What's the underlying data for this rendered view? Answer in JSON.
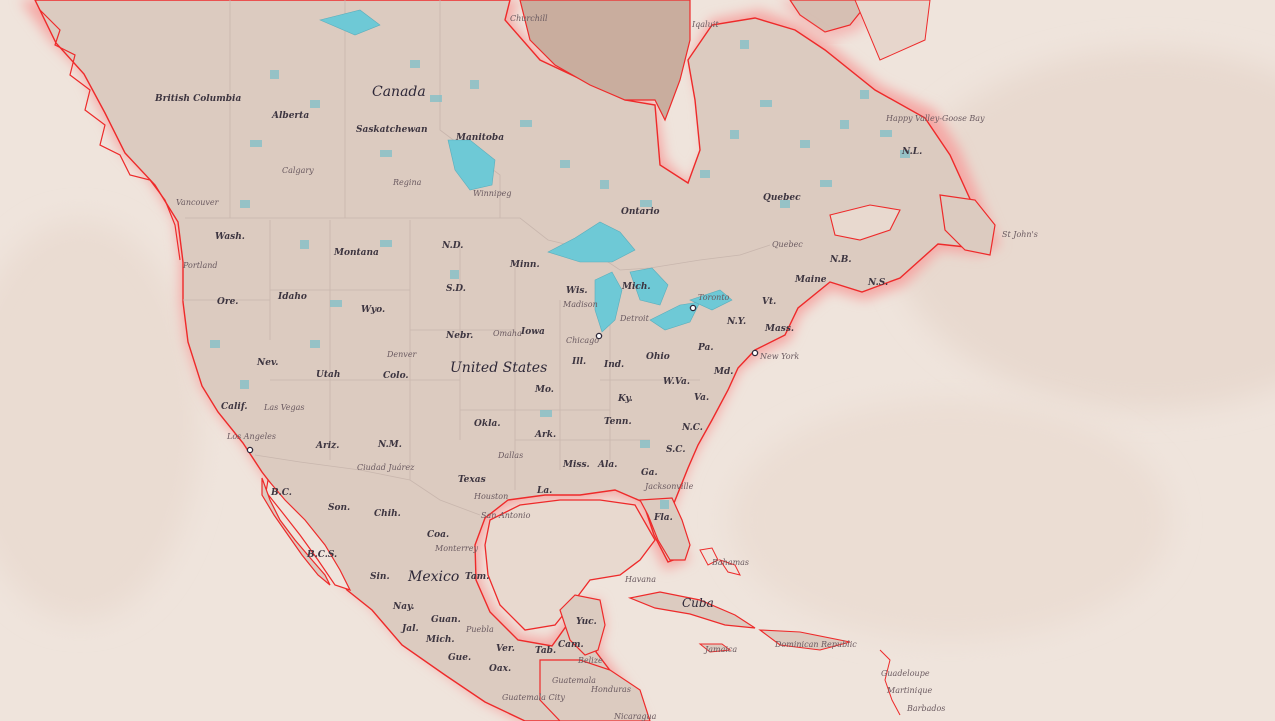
{
  "colors": {
    "ocean": "#efe4dc",
    "ocean_dark": "#e7d8ce",
    "land": "#dfcdc2",
    "land_dark": "#c9ad9e",
    "coast_line": "#ee2a2a",
    "coast_glow": "#f5a6a4",
    "lake": "#6ec9d6",
    "border": "#c8b6ad"
  },
  "map": {
    "countries": [
      {
        "id": "canada",
        "label": "Canada"
      },
      {
        "id": "united-states",
        "label": "United States"
      },
      {
        "id": "mexico",
        "label": "Mexico"
      },
      {
        "id": "cuba",
        "label": "Cuba"
      }
    ],
    "regions": [
      {
        "id": "british-columbia",
        "label": "British Columbia"
      },
      {
        "id": "alberta",
        "label": "Alberta"
      },
      {
        "id": "saskatchewan",
        "label": "Saskatchewan"
      },
      {
        "id": "manitoba",
        "label": "Manitoba"
      },
      {
        "id": "ontario",
        "label": "Ontario"
      },
      {
        "id": "quebec",
        "label": "Quebec"
      },
      {
        "id": "nl",
        "label": "N.L."
      },
      {
        "id": "nb",
        "label": "N.B."
      },
      {
        "id": "ns",
        "label": "N.S."
      },
      {
        "id": "wash",
        "label": "Wash."
      },
      {
        "id": "ore",
        "label": "Ore."
      },
      {
        "id": "calif",
        "label": "Calif."
      },
      {
        "id": "nev",
        "label": "Nev."
      },
      {
        "id": "idaho",
        "label": "Idaho"
      },
      {
        "id": "montana",
        "label": "Montana"
      },
      {
        "id": "wyo",
        "label": "Wyo."
      },
      {
        "id": "utah",
        "label": "Utah"
      },
      {
        "id": "colo",
        "label": "Colo."
      },
      {
        "id": "ariz",
        "label": "Ariz."
      },
      {
        "id": "nm",
        "label": "N.M."
      },
      {
        "id": "nd",
        "label": "N.D."
      },
      {
        "id": "sd",
        "label": "S.D."
      },
      {
        "id": "nebr",
        "label": "Nebr."
      },
      {
        "id": "minn",
        "label": "Minn."
      },
      {
        "id": "iowa",
        "label": "Iowa"
      },
      {
        "id": "mo",
        "label": "Mo."
      },
      {
        "id": "okla",
        "label": "Okla."
      },
      {
        "id": "texas",
        "label": "Texas"
      },
      {
        "id": "ark",
        "label": "Ark."
      },
      {
        "id": "la",
        "label": "La."
      },
      {
        "id": "miss",
        "label": "Miss."
      },
      {
        "id": "ala",
        "label": "Ala."
      },
      {
        "id": "ga",
        "label": "Ga."
      },
      {
        "id": "fla",
        "label": "Fla."
      },
      {
        "id": "sc",
        "label": "S.C."
      },
      {
        "id": "nc",
        "label": "N.C."
      },
      {
        "id": "tenn",
        "label": "Tenn."
      },
      {
        "id": "ky",
        "label": "Ky."
      },
      {
        "id": "va",
        "label": "Va."
      },
      {
        "id": "wva",
        "label": "W.Va."
      },
      {
        "id": "md",
        "label": "Md."
      },
      {
        "id": "pa",
        "label": "Pa."
      },
      {
        "id": "ny",
        "label": "N.Y."
      },
      {
        "id": "ohio",
        "label": "Ohio"
      },
      {
        "id": "ind",
        "label": "Ind."
      },
      {
        "id": "ill",
        "label": "Ill."
      },
      {
        "id": "wis",
        "label": "Wis."
      },
      {
        "id": "mich",
        "label": "Mich."
      },
      {
        "id": "vt",
        "label": "Vt."
      },
      {
        "id": "maine",
        "label": "Maine"
      },
      {
        "id": "mass",
        "label": "Mass."
      },
      {
        "id": "bc",
        "label": "B.C."
      },
      {
        "id": "bcs",
        "label": "B.C.S."
      },
      {
        "id": "son",
        "label": "Son."
      },
      {
        "id": "chih",
        "label": "Chih."
      },
      {
        "id": "coa",
        "label": "Coa."
      },
      {
        "id": "sin",
        "label": "Sin."
      },
      {
        "id": "tam",
        "label": "Tam."
      },
      {
        "id": "nay",
        "label": "Nay."
      },
      {
        "id": "jal",
        "label": "Jal."
      },
      {
        "id": "guan",
        "label": "Guan."
      },
      {
        "id": "mich-mx",
        "label": "Mich."
      },
      {
        "id": "gue",
        "label": "Gue."
      },
      {
        "id": "oax",
        "label": "Oax."
      },
      {
        "id": "ver",
        "label": "Ver."
      },
      {
        "id": "tab",
        "label": "Tab."
      },
      {
        "id": "cam",
        "label": "Cam."
      },
      {
        "id": "yuc",
        "label": "Yuc."
      }
    ],
    "cities": [
      {
        "id": "churchill",
        "label": "Churchill"
      },
      {
        "id": "iqaluit",
        "label": "Iqaluit"
      },
      {
        "id": "happy-valley",
        "label": "Happy Valley-Goose Bay"
      },
      {
        "id": "calgary",
        "label": "Calgary"
      },
      {
        "id": "regina",
        "label": "Regina"
      },
      {
        "id": "winnipeg",
        "label": "Winnipeg"
      },
      {
        "id": "vancouver",
        "label": "Vancouver"
      },
      {
        "id": "portland",
        "label": "Portland"
      },
      {
        "id": "st-johns",
        "label": "St John's"
      },
      {
        "id": "quebec-city",
        "label": "Quebec"
      },
      {
        "id": "toronto",
        "label": "Toronto"
      },
      {
        "id": "detroit",
        "label": "Detroit"
      },
      {
        "id": "madison",
        "label": "Madison"
      },
      {
        "id": "chicago",
        "label": "Chicago"
      },
      {
        "id": "omaha",
        "label": "Omaha"
      },
      {
        "id": "denver",
        "label": "Denver"
      },
      {
        "id": "las-vegas",
        "label": "Las Vegas"
      },
      {
        "id": "los-angeles",
        "label": "Los Angeles"
      },
      {
        "id": "ciudad-juarez",
        "label": "Ciudad Juárez"
      },
      {
        "id": "dallas",
        "label": "Dallas"
      },
      {
        "id": "houston",
        "label": "Houston"
      },
      {
        "id": "san-antonio",
        "label": "San Antonio"
      },
      {
        "id": "monterrey",
        "label": "Monterrey"
      },
      {
        "id": "puebla",
        "label": "Puebla"
      },
      {
        "id": "new-york",
        "label": "New York"
      },
      {
        "id": "jacksonville",
        "label": "Jacksonville"
      },
      {
        "id": "havana",
        "label": "Havana"
      },
      {
        "id": "bahamas",
        "label": "Bahamas"
      },
      {
        "id": "jamaica",
        "label": "Jamaica"
      },
      {
        "id": "dominican-republic",
        "label": "Dominican Republic"
      },
      {
        "id": "belize",
        "label": "Belize"
      },
      {
        "id": "guatemala",
        "label": "Guatemala"
      },
      {
        "id": "guatemala-city",
        "label": "Guatemala City"
      },
      {
        "id": "honduras",
        "label": "Honduras"
      },
      {
        "id": "nicaragua",
        "label": "Nicaragua"
      },
      {
        "id": "guadeloupe",
        "label": "Guadeloupe"
      },
      {
        "id": "martinique",
        "label": "Martinique"
      },
      {
        "id": "barbados",
        "label": "Barbados"
      }
    ]
  }
}
